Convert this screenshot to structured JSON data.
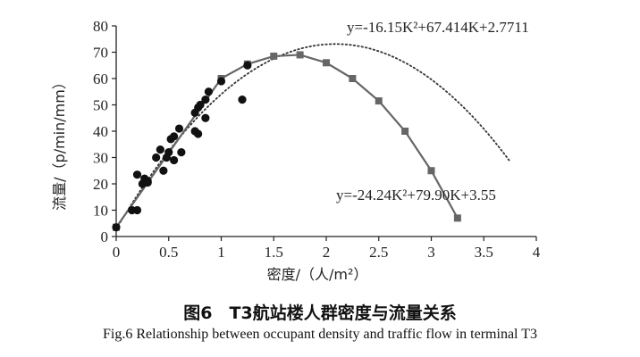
{
  "chart_data": {
    "type": "scatter",
    "xlabel": "密度/（人/m²）",
    "ylabel": "流量/（p/min/mm）",
    "xlim": [
      0,
      4
    ],
    "ylim": [
      0,
      80
    ],
    "xticks": [
      "0",
      "0.5",
      "1",
      "1.5",
      "2",
      "2.5",
      "3",
      "3.5",
      "4"
    ],
    "yticks": [
      "0",
      "10",
      "20",
      "30",
      "40",
      "50",
      "60",
      "70",
      "80"
    ],
    "grid": false,
    "series": [
      {
        "kind": "scatter",
        "marker": "circle",
        "color": "#111111",
        "points": [
          [
            0.0,
            3.5
          ],
          [
            0.15,
            10
          ],
          [
            0.2,
            10
          ],
          [
            0.2,
            23.5
          ],
          [
            0.25,
            20
          ],
          [
            0.27,
            22
          ],
          [
            0.3,
            21
          ],
          [
            0.3,
            20.5
          ],
          [
            0.38,
            30
          ],
          [
            0.42,
            33
          ],
          [
            0.45,
            25
          ],
          [
            0.48,
            30
          ],
          [
            0.5,
            32
          ],
          [
            0.52,
            37
          ],
          [
            0.55,
            29
          ],
          [
            0.55,
            38
          ],
          [
            0.6,
            41
          ],
          [
            0.62,
            32
          ],
          [
            0.75,
            40
          ],
          [
            0.75,
            47
          ],
          [
            0.78,
            39
          ],
          [
            0.78,
            49
          ],
          [
            0.8,
            50
          ],
          [
            0.85,
            45
          ],
          [
            0.85,
            52
          ],
          [
            0.88,
            55
          ],
          [
            1.0,
            59
          ],
          [
            1.2,
            52
          ],
          [
            1.25,
            65
          ]
        ]
      },
      {
        "kind": "line",
        "marker": "square",
        "color": "#666666",
        "x": [
          0,
          1.0,
          1.25,
          1.5,
          1.75,
          2.0,
          2.25,
          2.5,
          2.75,
          3.0,
          3.25
        ],
        "y": [
          3.5,
          60,
          65.5,
          68.5,
          69,
          66,
          60,
          51.5,
          40,
          25,
          7
        ]
      },
      {
        "kind": "fit",
        "style": "dotted",
        "color": "#333333",
        "formula": {
          "a": -16.15,
          "b": 67.414,
          "c": 2.7711
        },
        "x_range": [
          0,
          3.75
        ]
      }
    ],
    "annotations": {
      "fit_eq": "y=-16.15K²+67.414K+2.7711",
      "line_eq": "y=-24.24K²+79.90K+3.55"
    }
  },
  "captions": {
    "zh": "图6　T3航站楼人群密度与流量关系",
    "en": "Fig.6    Relationship between occupant density and traffic flow in terminal T3"
  }
}
